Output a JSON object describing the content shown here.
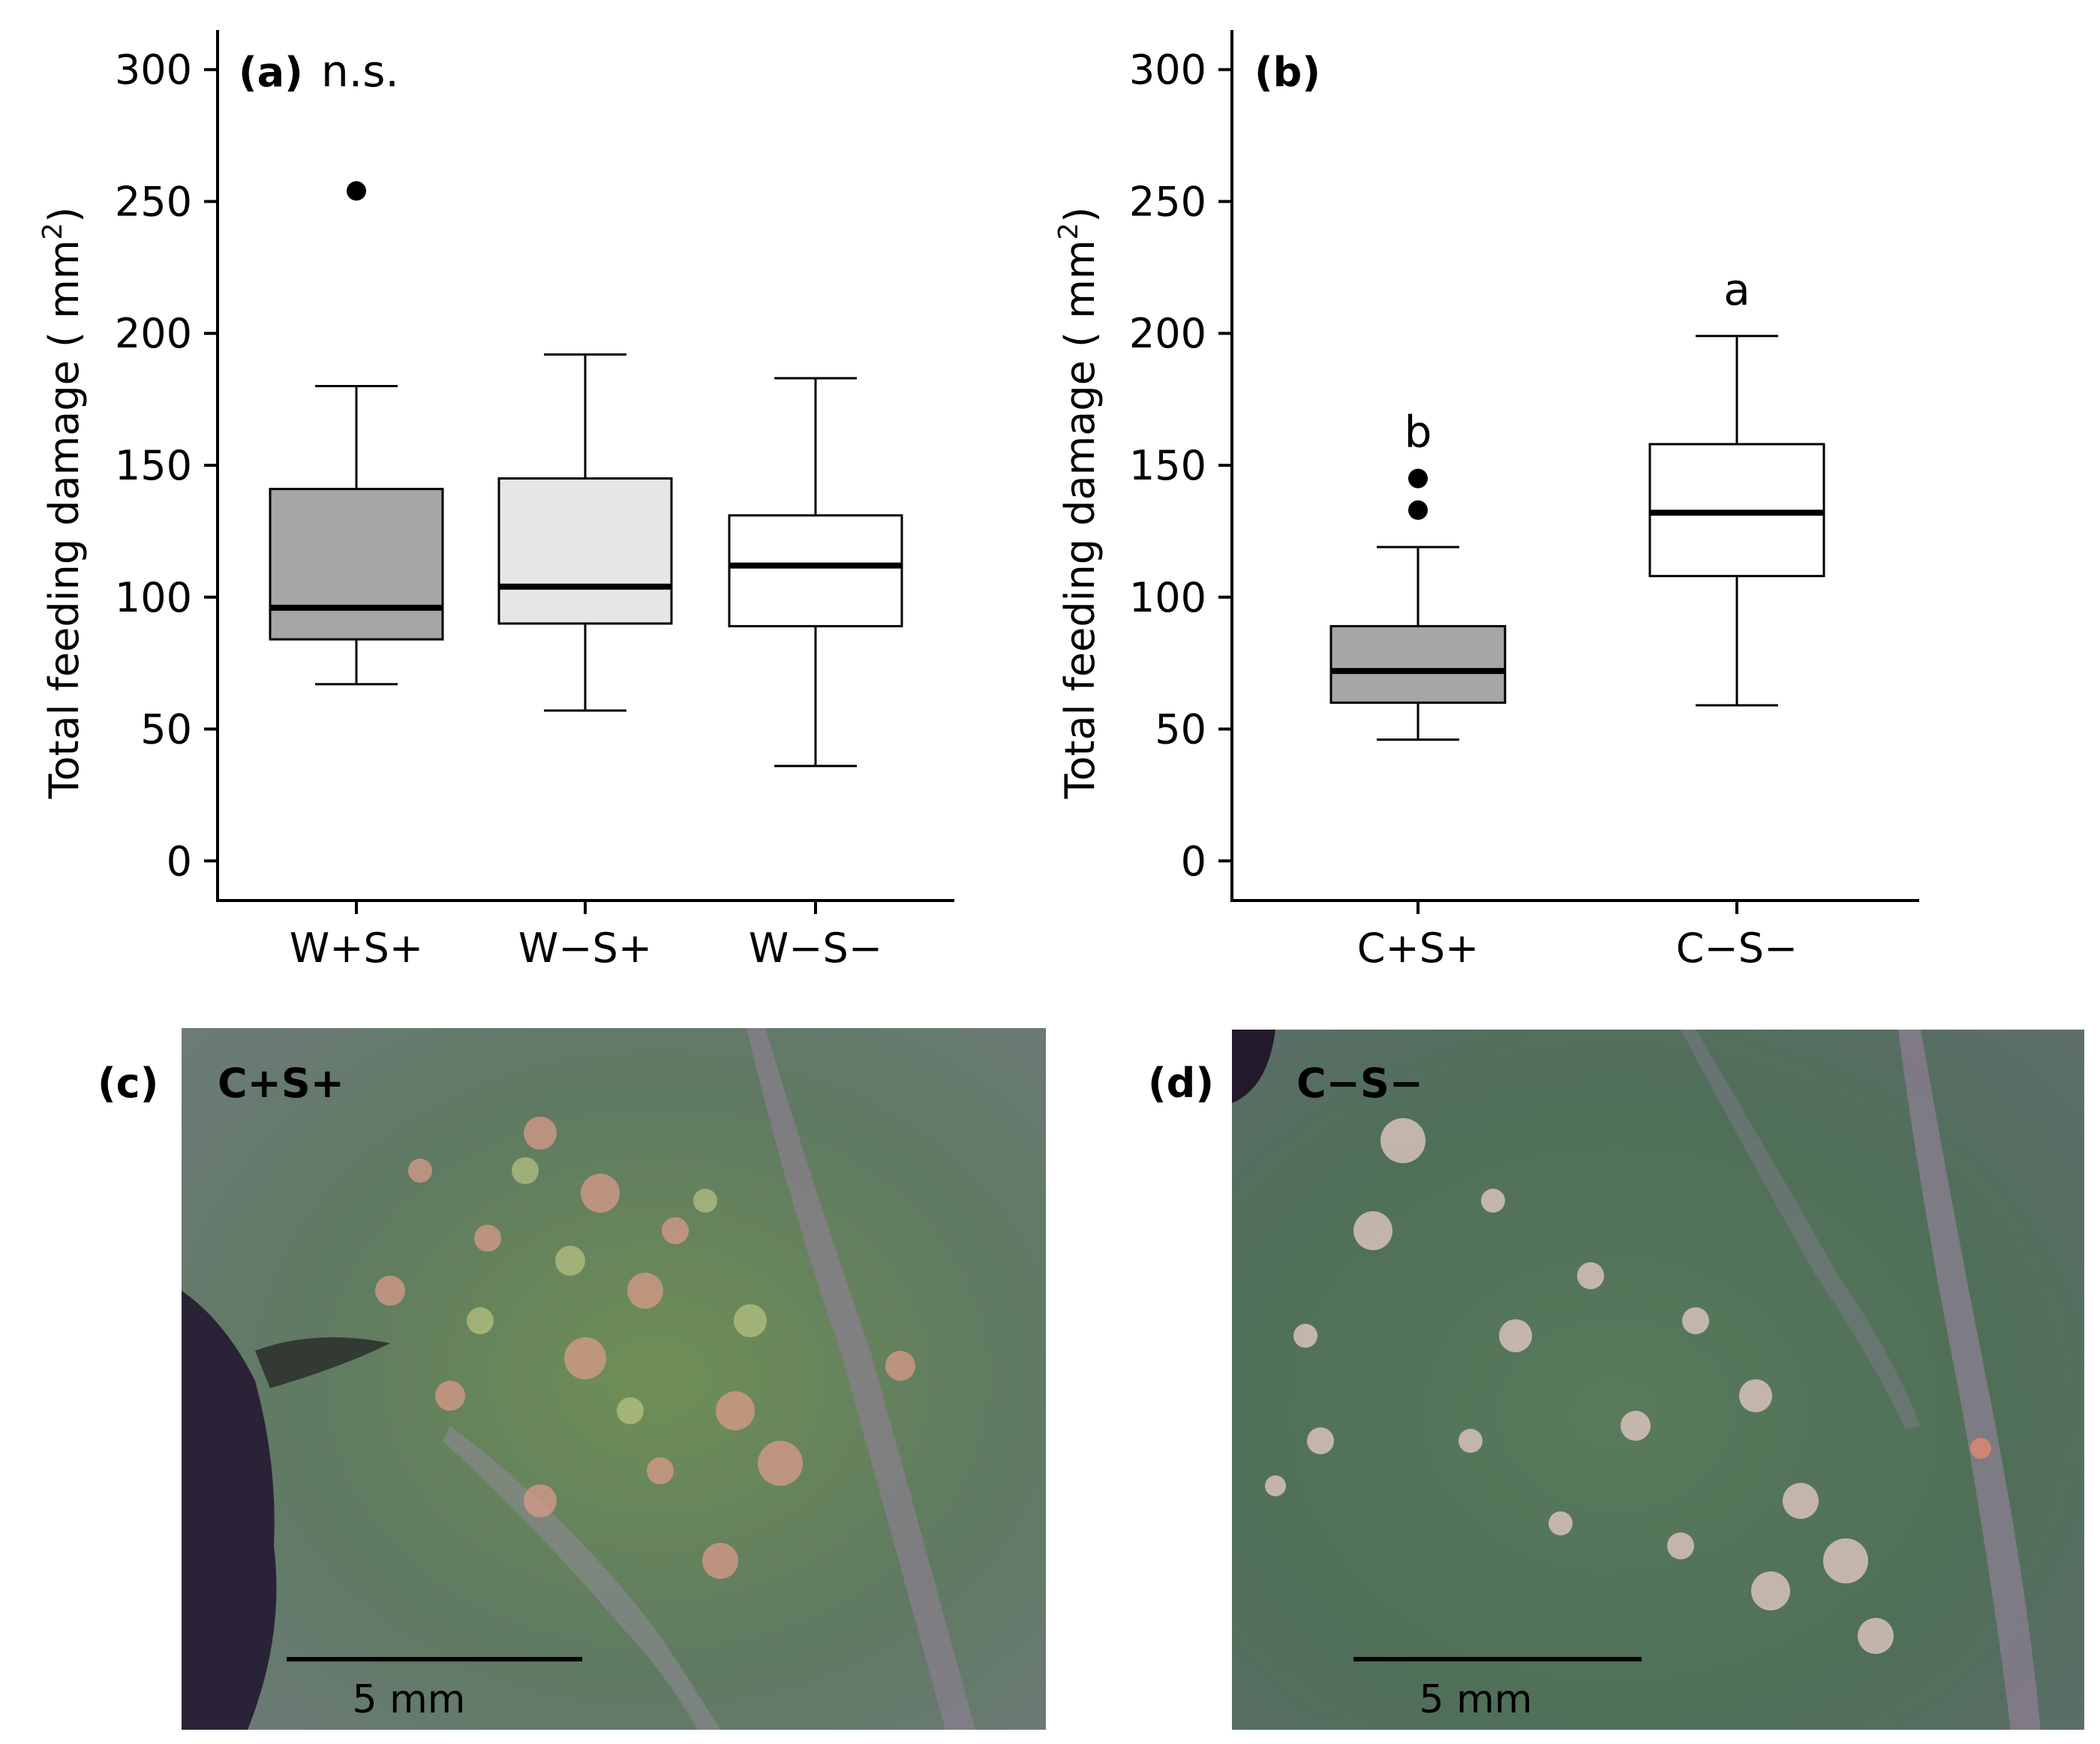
{
  "chart_data": [
    {
      "panel": "(a)",
      "type": "boxplot",
      "annotation": "n.s.",
      "ylabel": "Total feeding damage ( mm",
      "ylabel_sup": "2",
      "ylabel_close": ")",
      "ylim": [
        -15,
        315
      ],
      "yticks": [
        0,
        50,
        100,
        150,
        200,
        250,
        300
      ],
      "categories": [
        "W+S+",
        "W−S+",
        "W−S−"
      ],
      "boxes": [
        {
          "category": "W+S+",
          "whisker_low": 67,
          "q1": 84,
          "median": 96,
          "q3": 141,
          "whisker_high": 180,
          "outliers": [
            254
          ],
          "fill": "#a6a6a6"
        },
        {
          "category": "W−S+",
          "whisker_low": 57,
          "q1": 90,
          "median": 104,
          "q3": 145,
          "whisker_high": 192,
          "outliers": [],
          "fill": "#e6e6e6"
        },
        {
          "category": "W−S−",
          "whisker_low": 36,
          "q1": 89,
          "median": 112,
          "q3": 131,
          "whisker_high": 183,
          "outliers": [],
          "fill": "#ffffff"
        }
      ]
    },
    {
      "panel": "(b)",
      "type": "boxplot",
      "annotation": "",
      "ylabel": "Total feeding damage ( mm",
      "ylabel_sup": "2",
      "ylabel_close": ")",
      "ylim": [
        -15,
        315
      ],
      "yticks": [
        0,
        50,
        100,
        150,
        200,
        250,
        300
      ],
      "categories": [
        "C+S+",
        "C−S−"
      ],
      "boxes": [
        {
          "category": "C+S+",
          "whisker_low": 46,
          "q1": 60,
          "median": 72,
          "q3": 89,
          "whisker_high": 119,
          "outliers": [
            133,
            145
          ],
          "fill": "#a6a6a6",
          "letter": "b"
        },
        {
          "category": "C−S−",
          "whisker_low": 59,
          "q1": 108,
          "median": 132,
          "q3": 158,
          "whisker_high": 199,
          "outliers": [],
          "fill": "#ffffff",
          "letter": "a"
        }
      ]
    }
  ],
  "photos": [
    {
      "panel": "(c)",
      "label": "C+S+",
      "scale_bar": "5 mm"
    },
    {
      "panel": "(d)",
      "label": "C−S−",
      "scale_bar": "5 mm"
    }
  ]
}
